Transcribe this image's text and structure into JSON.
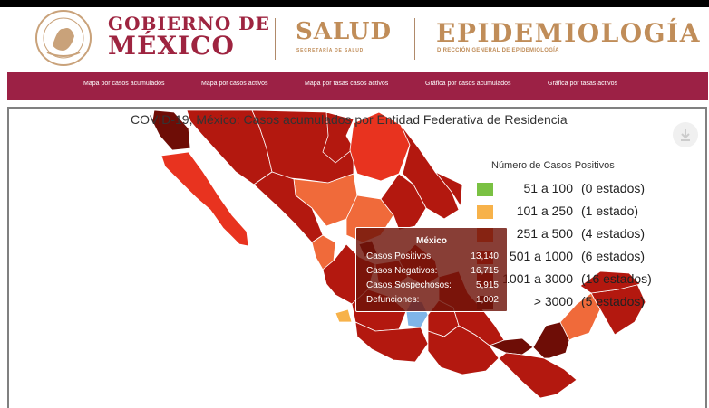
{
  "header": {
    "gobierno_line1": "GOBIERNO DE",
    "gobierno_line2": "MÉXICO",
    "salud_title": "SALUD",
    "salud_subtitle": "SECRETARÍA DE SALUD",
    "epi_title": "EPIDEMIOLOGÍA",
    "epi_subtitle": "DIRECCIÓN GENERAL DE EPIDEMIOLOGÍA"
  },
  "nav": {
    "items": [
      {
        "label": "Mapa por casos acumulados"
      },
      {
        "label": "Mapa por casos activos"
      },
      {
        "label": "Mapa por tasas casos activos"
      },
      {
        "label": "Gráfica por casos acumulados"
      },
      {
        "label": "Gráfica por tasas activos"
      }
    ]
  },
  "map": {
    "title": "COVID-19, México: Casos acumulados por Entidad Federativa de Residencia",
    "download_icon": "download-icon"
  },
  "legend": {
    "title": "Número de Casos Positivos",
    "items": [
      {
        "range": "51 a 100",
        "count": "(0 estados)",
        "color": "#7ac143"
      },
      {
        "range": "101 a 250",
        "count": "(1 estado)",
        "color": "#f7b24a"
      },
      {
        "range": "251 a 500",
        "count": "(4 estados)",
        "color": "#f06a3a"
      },
      {
        "range": "501 a 1000",
        "count": "(6 estados)",
        "color": "#e8331f"
      },
      {
        "range": "1001 a 3000",
        "count": "(16 estados)",
        "color": "#b3180f"
      },
      {
        "range": "> 3000",
        "count": "(5 estados)",
        "color": "#6e0d06"
      }
    ]
  },
  "tooltip": {
    "title": "México",
    "rows": [
      {
        "label": "Casos Positivos:",
        "value": "13,140"
      },
      {
        "label": "Casos Negativos:",
        "value": "16,715"
      },
      {
        "label": "Casos Sospechosos:",
        "value": "5,915"
      },
      {
        "label": "Defunciones:",
        "value": "1,002"
      }
    ]
  },
  "colors": {
    "brand": "#9c2145",
    "gold": "#c08d59"
  }
}
